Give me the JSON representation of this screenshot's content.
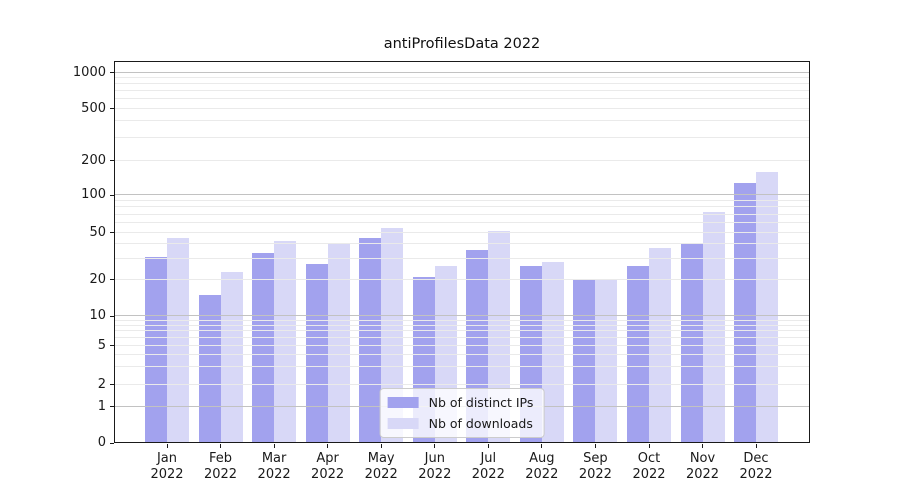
{
  "chart_data": {
    "type": "bar",
    "title": "antiProfilesData 2022",
    "categories": [
      "Jan",
      "Feb",
      "Mar",
      "Apr",
      "May",
      "Jun",
      "Jul",
      "Aug",
      "Sep",
      "Oct",
      "Nov",
      "Dec"
    ],
    "category_year": "2022",
    "series": [
      {
        "name": "Nb of distinct IPs",
        "color": "#a2a2ee",
        "values": [
          31,
          15,
          34,
          27,
          45,
          21,
          36,
          26,
          20,
          26,
          40,
          127
        ]
      },
      {
        "name": "Nb of downloads",
        "color": "#d8d8f7",
        "values": [
          45,
          23,
          43,
          40,
          55,
          26,
          52,
          28,
          20,
          37,
          74,
          160
        ]
      }
    ],
    "xlabel": "",
    "ylabel": "",
    "y_axis": {
      "scale": "symlog",
      "tick_labels": [
        "0",
        "1",
        "2",
        "5",
        "10",
        "20",
        "50",
        "100",
        "200",
        "500",
        "1000"
      ],
      "ylim_top_approx": 1300
    },
    "legend": {
      "location": "lower center",
      "entries": [
        "Nb of distinct IPs",
        "Nb of downloads"
      ]
    },
    "grid": {
      "shown": true,
      "major_color": "#c2c2c2",
      "minor_color": "#eaeaea"
    }
  }
}
